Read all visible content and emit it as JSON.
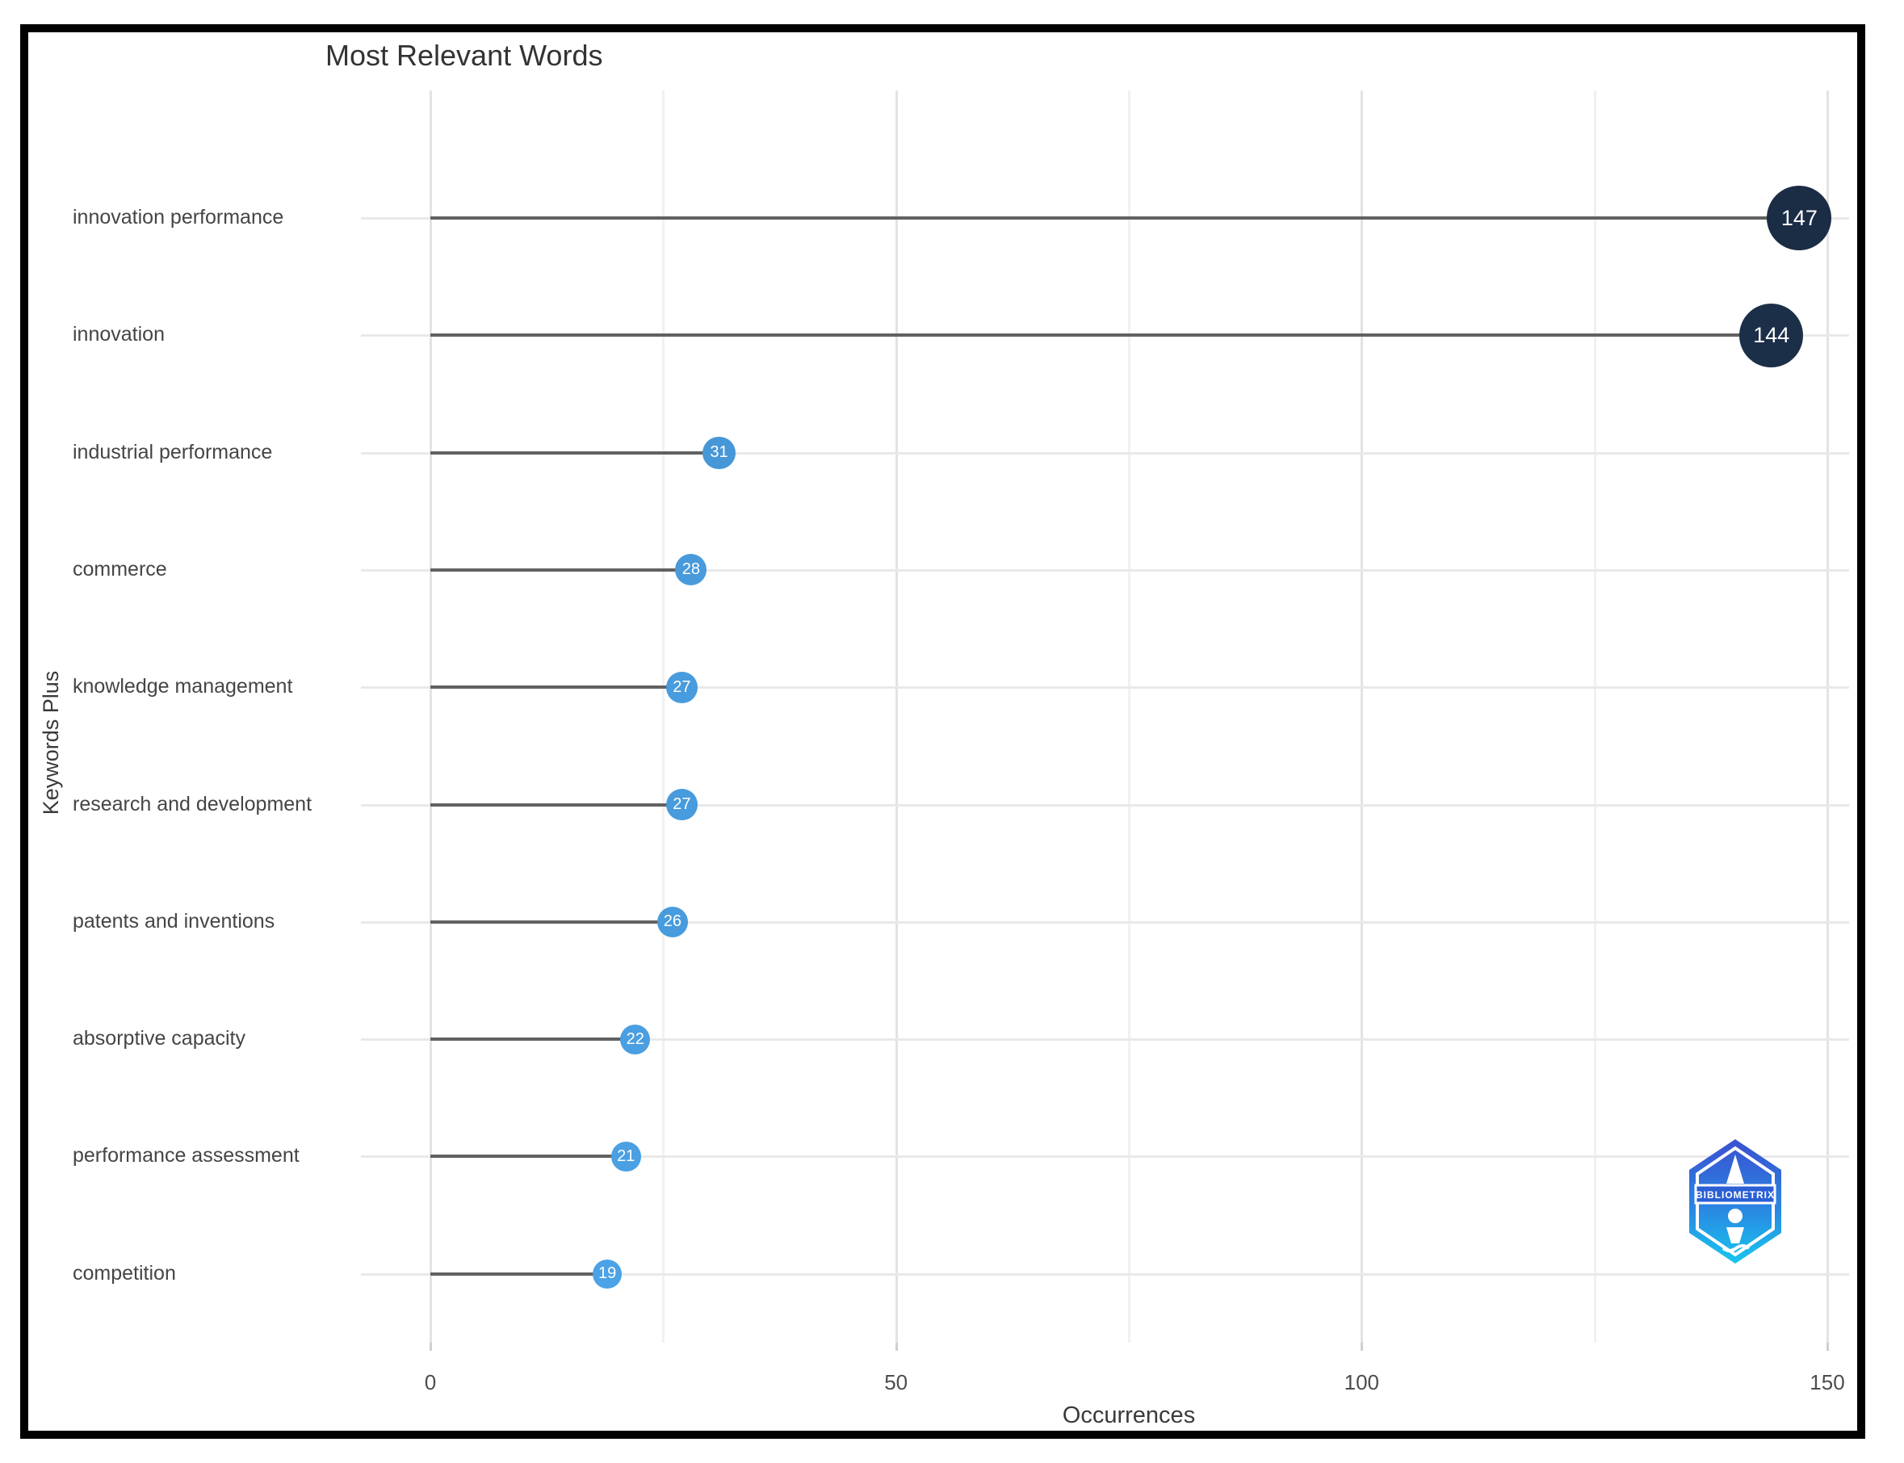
{
  "chart_data": {
    "type": "scatter",
    "variant": "lollipop",
    "title": "Most Relevant Words",
    "xlabel": "Occurrences",
    "ylabel": "Keywords Plus",
    "categories": [
      "innovation performance",
      "innovation",
      "industrial performance",
      "commerce",
      "knowledge management",
      "research and development",
      "patents and inventions",
      "absorptive capacity",
      "performance assessment",
      "competition"
    ],
    "values": [
      147,
      144,
      31,
      28,
      27,
      27,
      26,
      22,
      21,
      19
    ],
    "data_labels": [
      "147",
      "144",
      "31",
      "28",
      "27",
      "27",
      "26",
      "22",
      "21",
      "19"
    ],
    "xlim": [
      0,
      150
    ],
    "x_ticks": [
      0,
      50,
      100,
      150
    ],
    "x_minor_ticks": [
      25,
      75,
      125
    ],
    "grid": true,
    "legend_position": "none",
    "point_color_min": "#4BA2E6",
    "point_color_max": "#1B2C45",
    "stem_color": "#616161"
  },
  "logo": {
    "text": "BIBLIOMETRIX"
  }
}
